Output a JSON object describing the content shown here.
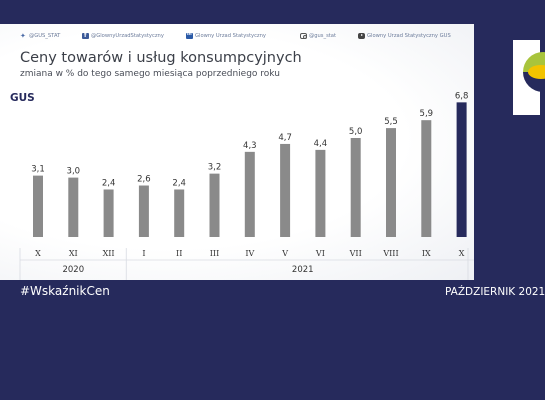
{
  "social": [
    {
      "icon": "twitter-icon",
      "label": "@GUS_STAT"
    },
    {
      "icon": "facebook-icon",
      "label": "@GlownyUrzadStatystyczny"
    },
    {
      "icon": "linkedin-icon",
      "label": "Glowny Urzad Statystyczny"
    },
    {
      "icon": "instagram-icon",
      "label": "@gus_stat"
    },
    {
      "icon": "youtube-icon",
      "label": "Glowny Urzad Statystyczny GUS"
    }
  ],
  "footer": {
    "hashtag": "#WskaźnikCen",
    "date": "PAŹDZIERNIK 2021"
  },
  "logo": {
    "text": "GUS"
  },
  "colors": {
    "background": "#262a5c",
    "bar": "#8a8a8a",
    "bar_highlight": "#262a5c",
    "logo_green": "#a8c43c",
    "logo_yellow": "#f2c300"
  },
  "chart_data": {
    "type": "bar",
    "title": "Ceny towarów i usług konsumpcyjnych",
    "subtitle": "zmiana w % do tego samego miesiąca poprzedniego roku",
    "categories": [
      "X",
      "XI",
      "XII",
      "I",
      "II",
      "III",
      "IV",
      "V",
      "VI",
      "VII",
      "VIII",
      "IX",
      "X"
    ],
    "values": [
      3.1,
      3.0,
      2.4,
      2.6,
      2.4,
      3.2,
      4.3,
      4.7,
      4.4,
      5.0,
      5.5,
      5.9,
      6.8
    ],
    "value_labels": [
      "3,1",
      "3,0",
      "2,4",
      "2,6",
      "2,4",
      "3,2",
      "4,3",
      "4,7",
      "4,4",
      "5,0",
      "5,5",
      "5,9",
      "6,8"
    ],
    "groups": [
      {
        "label": "2020",
        "start": 0,
        "end": 2
      },
      {
        "label": "2021",
        "start": 3,
        "end": 12
      }
    ],
    "highlight_index": 12,
    "ylim": [
      0,
      7
    ],
    "grid": false,
    "legend": "none"
  }
}
